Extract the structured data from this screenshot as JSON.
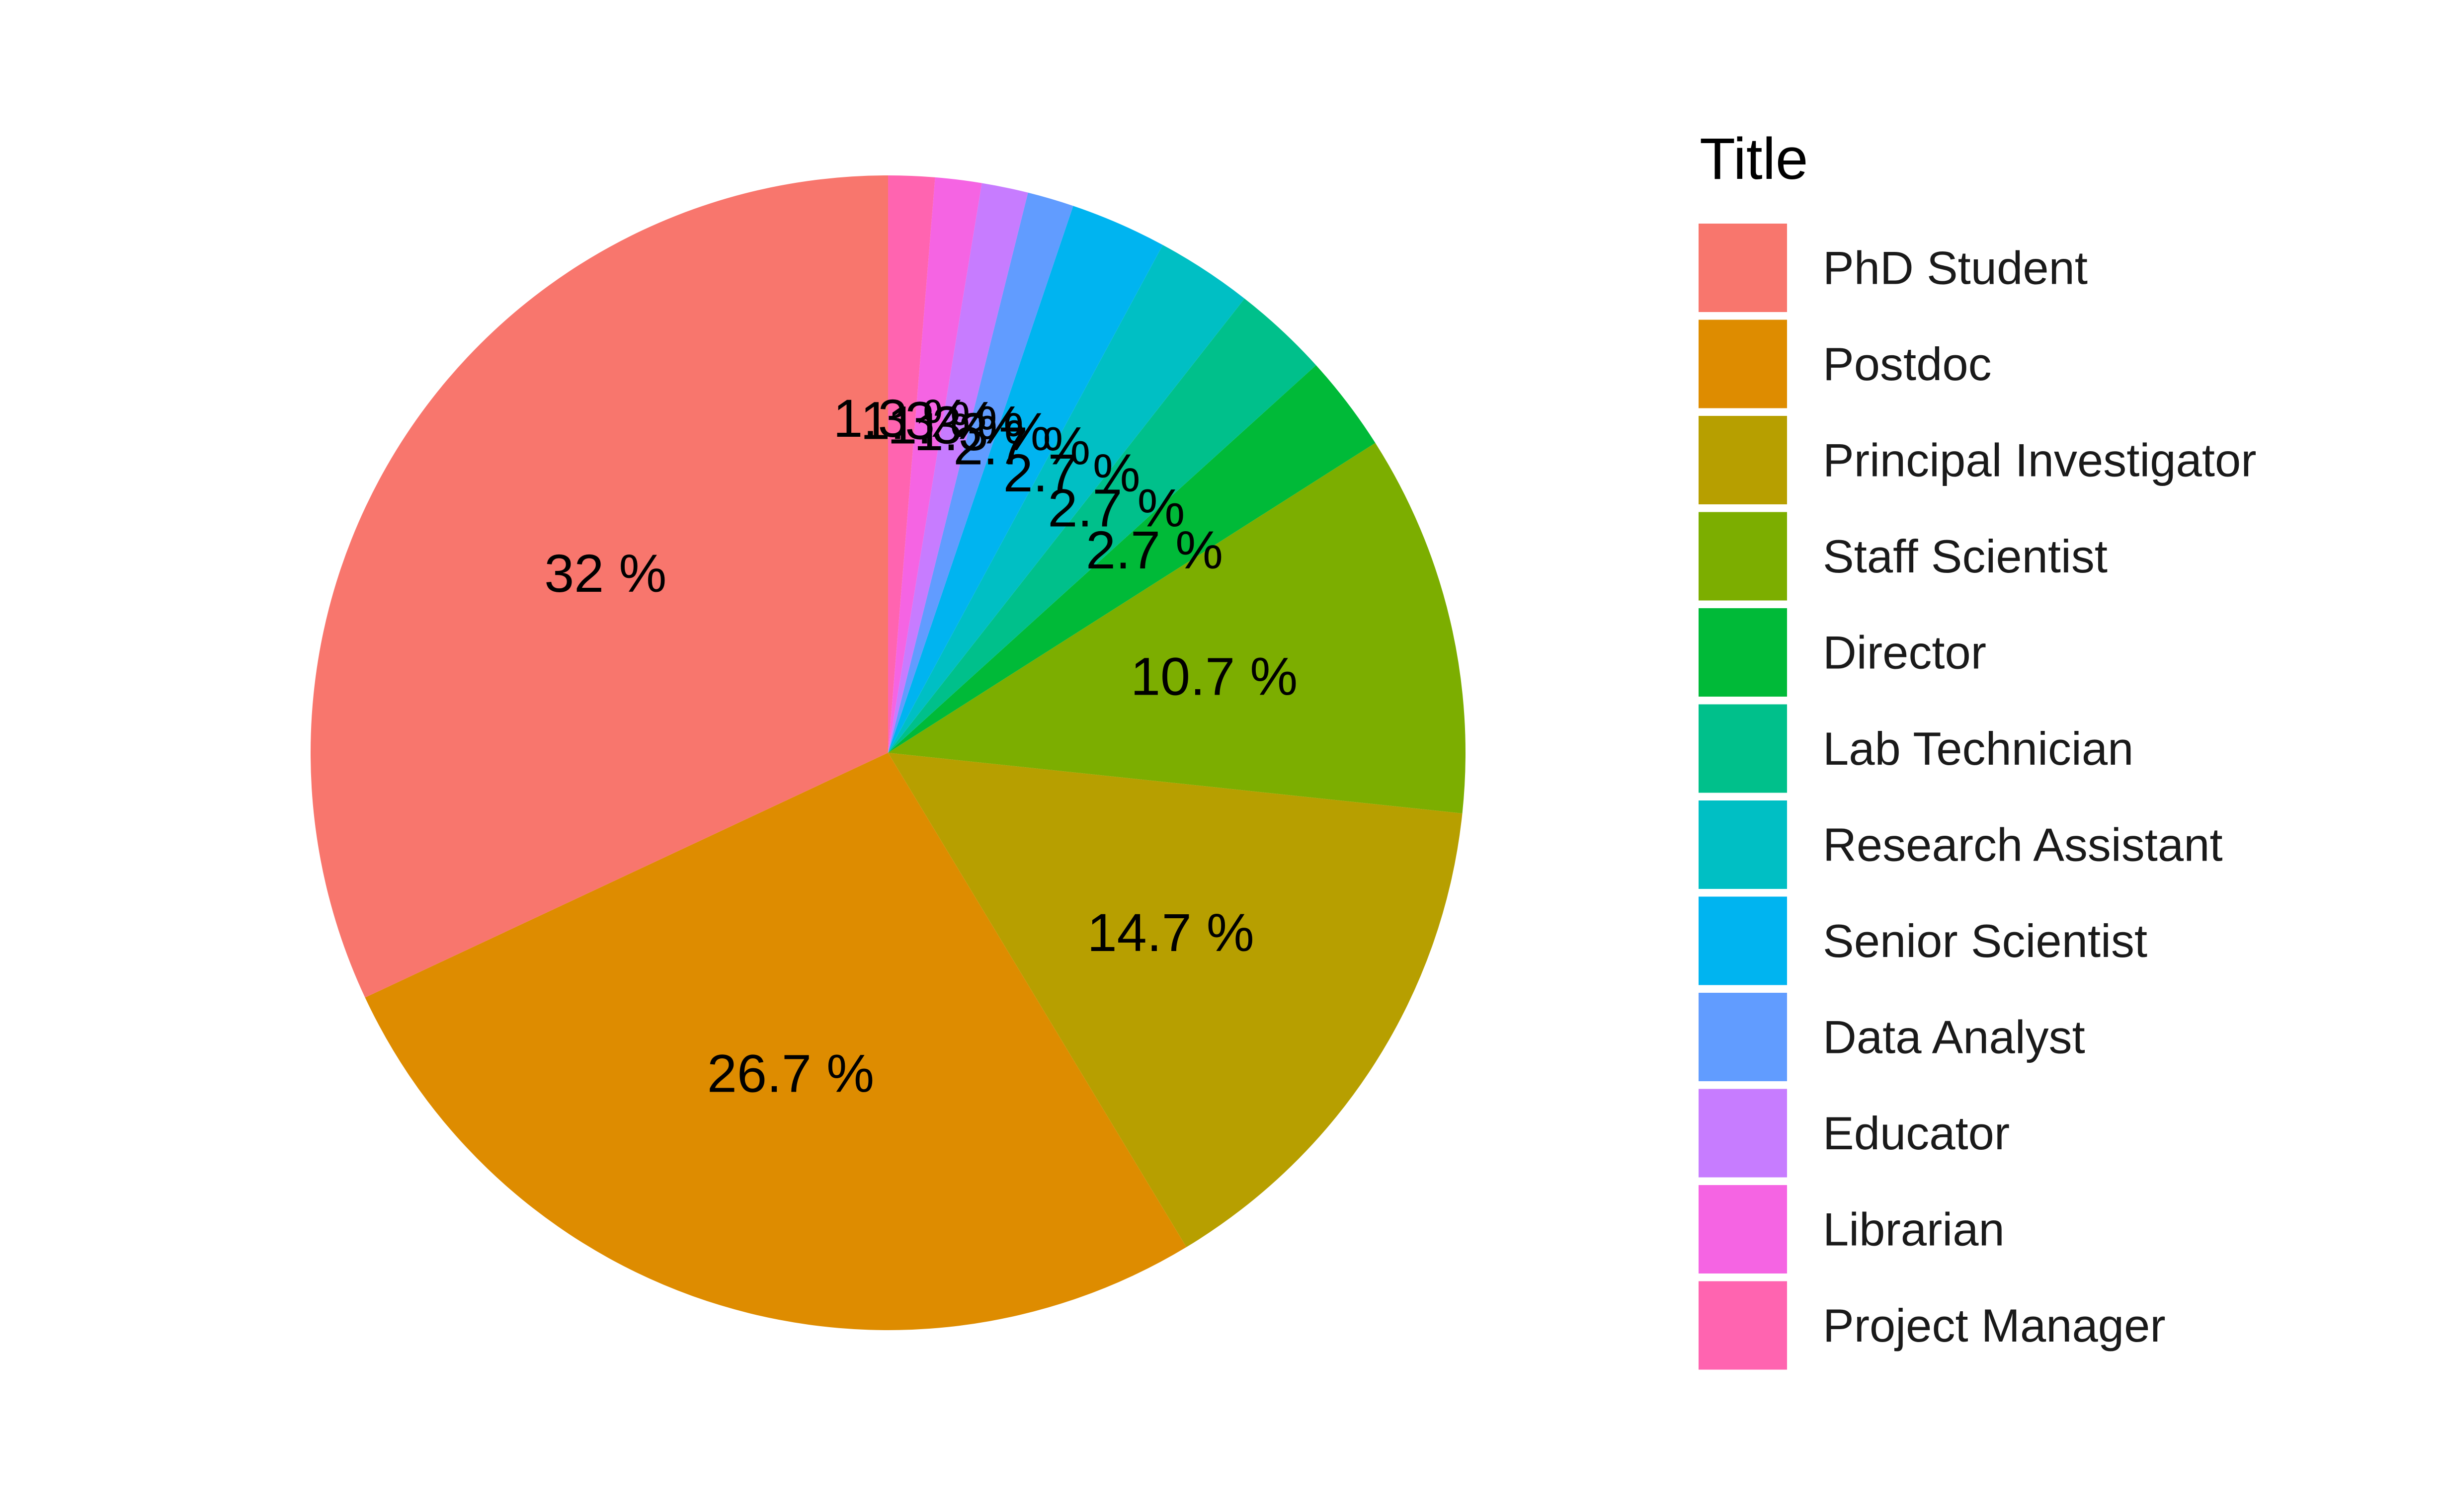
{
  "chart_data": {
    "type": "pie",
    "legend_title": "Title",
    "legend_position": "right",
    "start_angle": "12 o'clock",
    "direction": "counter-clockwise",
    "categories": [
      "PhD Student",
      "Postdoc",
      "Principal Investigator",
      "Staff Scientist",
      "Director",
      "Lab Technician",
      "Research Assistant",
      "Senior Scientist",
      "Data Analyst",
      "Educator",
      "Librarian",
      "Project Manager"
    ],
    "values": [
      32,
      26.7,
      14.7,
      10.7,
      2.7,
      2.7,
      2.7,
      2.7,
      1.3,
      1.3,
      1.3,
      1.3
    ],
    "labels": [
      "32 %",
      "26.7 %",
      "14.7 %",
      "10.7 %",
      "2.7 %",
      "2.7 %",
      "2.7 %",
      "2.7 %",
      "1.3 %",
      "1.3 %",
      "1.3 %",
      "1.3 %"
    ],
    "colors": [
      "#F8766D",
      "#DE8C00",
      "#B79F00",
      "#7CAE00",
      "#00BA38",
      "#00C08B",
      "#00BFC4",
      "#00B4F0",
      "#619CFF",
      "#C77CFF",
      "#F564E3",
      "#FF64B0"
    ]
  }
}
